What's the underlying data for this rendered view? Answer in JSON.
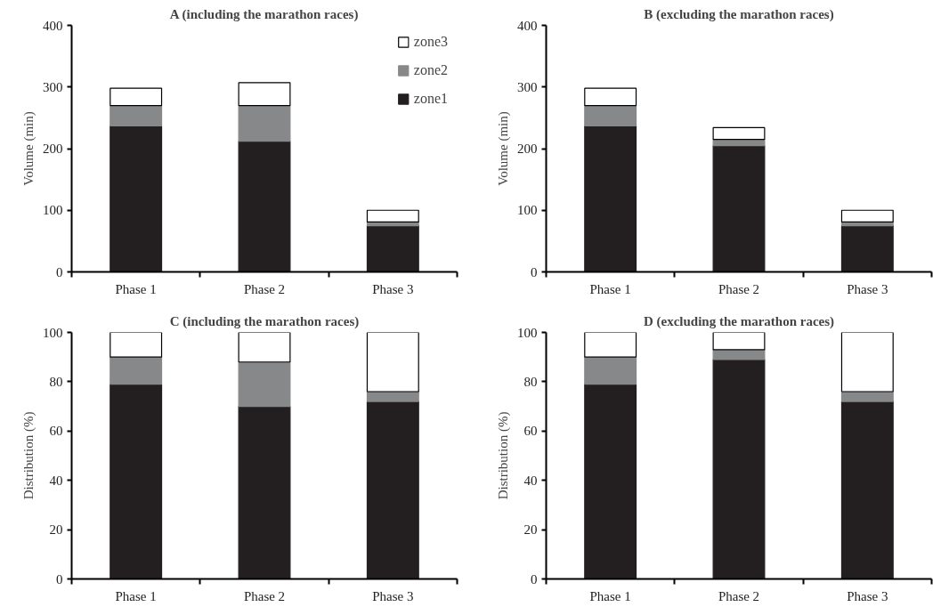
{
  "chart_data": [
    {
      "type": "bar",
      "stacked": true,
      "title": "A (including the marathon races)",
      "ylabel": "Volume (min)",
      "categories": [
        "Phase 1",
        "Phase 2",
        "Phase 3"
      ],
      "ylim": [
        0,
        400
      ],
      "yticks": [
        0,
        100,
        200,
        300,
        400
      ],
      "legend": "top right",
      "series": [
        {
          "name": "zone1",
          "color": "#231f20",
          "values": [
            237,
            212,
            75
          ]
        },
        {
          "name": "zone2",
          "color": "#87888a",
          "values": [
            33,
            58,
            6
          ]
        },
        {
          "name": "zone3",
          "color": "#ffffff",
          "values": [
            28,
            37,
            19
          ]
        }
      ]
    },
    {
      "type": "bar",
      "stacked": true,
      "title": "B (excluding the marathon races)",
      "ylabel": "Volume (min)",
      "categories": [
        "Phase 1",
        "Phase 2",
        "Phase 3"
      ],
      "ylim": [
        0,
        400
      ],
      "yticks": [
        0,
        100,
        200,
        300,
        400
      ],
      "series": [
        {
          "color": "#231f20",
          "values": [
            237,
            205,
            75
          ]
        },
        {
          "color": "#87888a",
          "values": [
            33,
            10,
            6
          ]
        },
        {
          "color": "#ffffff",
          "values": [
            28,
            19,
            19
          ]
        }
      ]
    },
    {
      "type": "bar",
      "stacked": true,
      "title": "C (including the marathon races)",
      "ylabel": "Distribution (%)",
      "categories": [
        "Phase 1",
        "Phase 2",
        "Phase 3"
      ],
      "ylim": [
        0,
        100
      ],
      "yticks": [
        0,
        20,
        40,
        60,
        80,
        100
      ],
      "series": [
        {
          "color": "#231f20",
          "values": [
            79,
            70,
            72
          ]
        },
        {
          "color": "#87888a",
          "values": [
            11,
            18,
            4
          ]
        },
        {
          "color": "#ffffff",
          "values": [
            10,
            12,
            24
          ]
        }
      ]
    },
    {
      "type": "bar",
      "stacked": true,
      "title": "D (excluding the marathon races)",
      "ylabel": "Distribution (%)",
      "categories": [
        "Phase 1",
        "Phase 2",
        "Phase 3"
      ],
      "ylim": [
        0,
        100
      ],
      "yticks": [
        0,
        20,
        40,
        60,
        80,
        100
      ],
      "series": [
        {
          "color": "#231f20",
          "values": [
            79,
            89,
            72
          ]
        },
        {
          "color": "#87888a",
          "values": [
            11,
            4,
            4
          ]
        },
        {
          "color": "#ffffff",
          "values": [
            10,
            7,
            24
          ]
        }
      ]
    }
  ]
}
